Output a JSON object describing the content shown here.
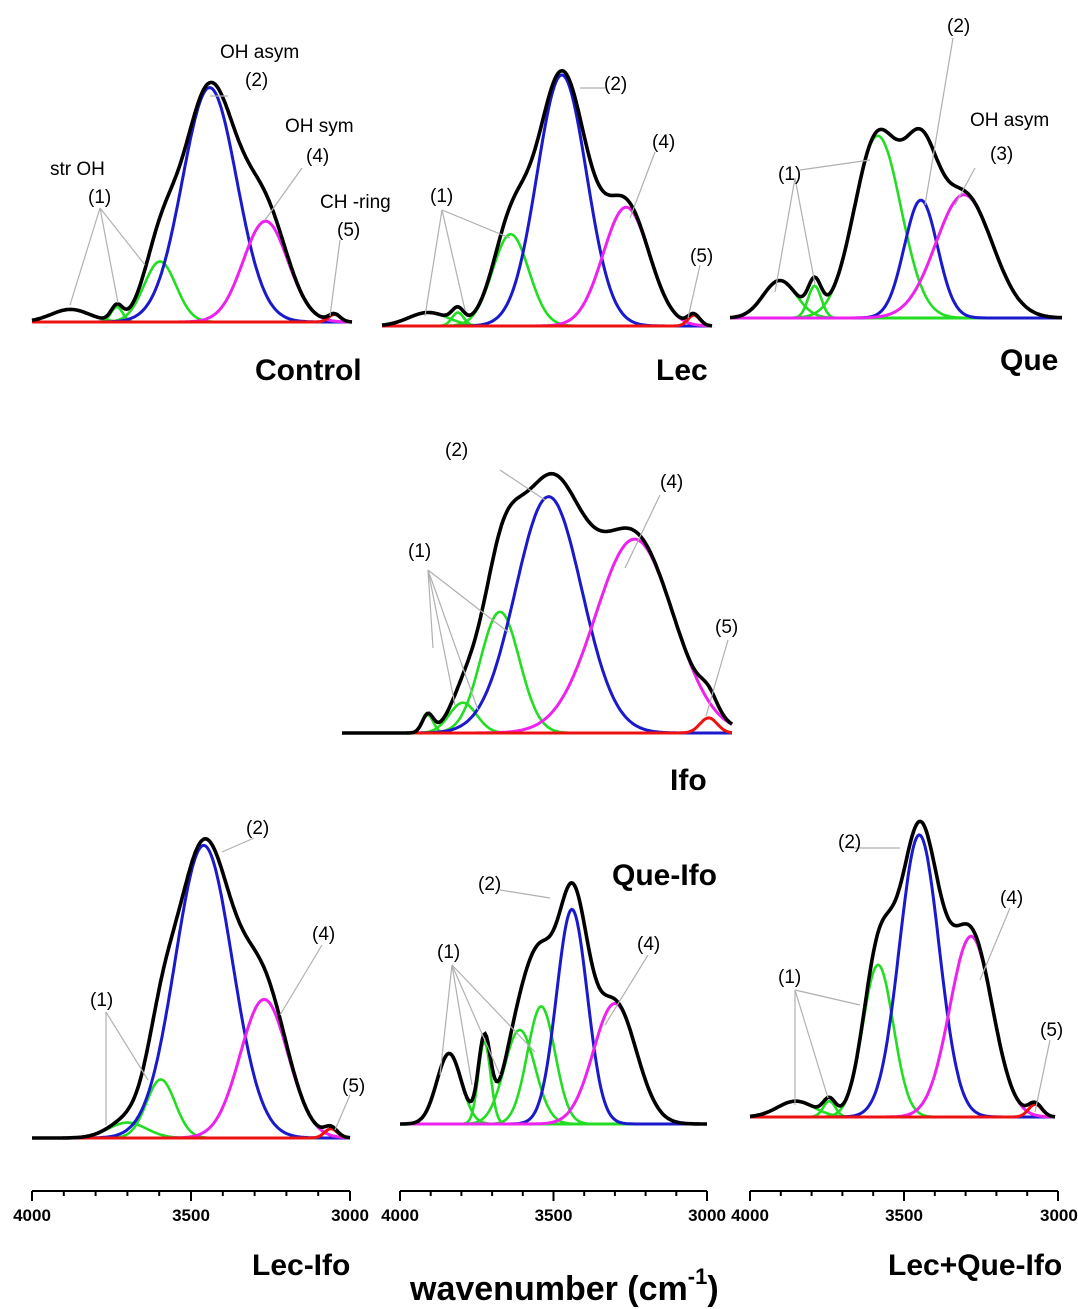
{
  "chart_data": {
    "type": "line",
    "xlabel_main": "wavenumber (cm",
    "xlabel_sup": "-1",
    "colors": {
      "total": "#000000",
      "c1": "#22dd22",
      "c2": "#1a1acc",
      "c3": "#1a1acc",
      "c4": "#ee22ee",
      "c5": "#ee1111"
    },
    "panels": [
      {
        "name": "Control",
        "xlim": [
          4000,
          3000
        ],
        "components": [
          {
            "id": "c1",
            "label": "(1)",
            "center": 3880,
            "height": 0.05,
            "width": 60
          },
          {
            "id": "c1",
            "label": "(1)",
            "center": 3735,
            "height": 0.06,
            "width": 18
          },
          {
            "id": "c1",
            "label": "(1)",
            "center": 3600,
            "height": 0.24,
            "width": 50
          },
          {
            "id": "c2",
            "label": "(2)",
            "center": 3445,
            "height": 0.93,
            "width": 85
          },
          {
            "id": "c4",
            "label": "(4)",
            "center": 3270,
            "height": 0.4,
            "width": 70
          },
          {
            "id": "c5",
            "label": "(5)",
            "center": 3055,
            "height": 0.03,
            "width": 18
          }
        ],
        "annotations": [
          {
            "text": "str OH"
          },
          {
            "text": "(1)"
          },
          {
            "text": "OH asym"
          },
          {
            "text": "(2)"
          },
          {
            "text": "OH sym"
          },
          {
            "text": "(4)"
          },
          {
            "text": "CH -ring"
          },
          {
            "text": "(5)"
          }
        ]
      },
      {
        "name": "Lec",
        "xlim": [
          4000,
          3000
        ],
        "components": [
          {
            "id": "c1",
            "label": "(1)",
            "center": 3860,
            "height": 0.05,
            "width": 60
          },
          {
            "id": "c1",
            "label": "(1)",
            "center": 3770,
            "height": 0.05,
            "width": 18
          },
          {
            "id": "c1",
            "label": "(1)",
            "center": 3610,
            "height": 0.34,
            "width": 55
          },
          {
            "id": "c2",
            "label": "(2)",
            "center": 3455,
            "height": 0.93,
            "width": 75
          },
          {
            "id": "c4",
            "label": "(4)",
            "center": 3260,
            "height": 0.44,
            "width": 70
          },
          {
            "id": "c5",
            "label": "(5)",
            "center": 3055,
            "height": 0.04,
            "width": 18
          }
        ],
        "annotations": [
          {
            "text": "(1)"
          },
          {
            "text": "(2)"
          },
          {
            "text": "(4)"
          },
          {
            "text": "(5)"
          }
        ]
      },
      {
        "name": "Que",
        "xlim": [
          4000,
          3000
        ],
        "components": [
          {
            "id": "c1",
            "label": "(1)",
            "center": 3850,
            "height": 0.14,
            "width": 50
          },
          {
            "id": "c1",
            "label": "(1)",
            "center": 3745,
            "height": 0.12,
            "width": 20
          },
          {
            "id": "c1",
            "label": "(1)",
            "center": 3555,
            "height": 0.68,
            "width": 70
          },
          {
            "id": "c3",
            "label": "(2)",
            "center": 3425,
            "height": 0.44,
            "width": 50
          },
          {
            "id": "c4",
            "label": "(3)",
            "center": 3295,
            "height": 0.46,
            "width": 85
          }
        ],
        "annotations": [
          {
            "text": "(2)"
          },
          {
            "text": "OH asym"
          },
          {
            "text": "(3)"
          },
          {
            "text": "(1)"
          }
        ]
      },
      {
        "name": "Ifo",
        "xlim": [
          4000,
          3000
        ],
        "components": [
          {
            "id": "c1",
            "label": "(1)",
            "center": 3780,
            "height": 0.06,
            "width": 14
          },
          {
            "id": "c1",
            "label": "(1)",
            "center": 3690,
            "height": 0.1,
            "width": 35
          },
          {
            "id": "c1",
            "label": "(1)",
            "center": 3595,
            "height": 0.4,
            "width": 50
          },
          {
            "id": "c2",
            "label": "(2)",
            "center": 3470,
            "height": 0.78,
            "width": 85
          },
          {
            "id": "c4",
            "label": "(4)",
            "center": 3250,
            "height": 0.64,
            "width": 100
          },
          {
            "id": "c5",
            "label": "(5)",
            "center": 3060,
            "height": 0.05,
            "width": 22
          }
        ],
        "annotations": [
          {
            "text": "(2)"
          },
          {
            "text": "(4)"
          },
          {
            "text": "(1)"
          },
          {
            "text": "(5)"
          }
        ]
      },
      {
        "name": "Lec-Ifo",
        "xlim": [
          4000,
          3000
        ],
        "xticks": [
          4000,
          3500,
          3000
        ],
        "components": [
          {
            "id": "c1",
            "label": "(1)",
            "center": 3700,
            "height": 0.05,
            "width": 60
          },
          {
            "id": "c1",
            "label": "(1)",
            "center": 3595,
            "height": 0.19,
            "width": 45
          },
          {
            "id": "c2",
            "label": "(2)",
            "center": 3460,
            "height": 0.95,
            "width": 90
          },
          {
            "id": "c4",
            "label": "(4)",
            "center": 3270,
            "height": 0.45,
            "width": 75
          },
          {
            "id": "c5",
            "label": "(5)",
            "center": 3060,
            "height": 0.03,
            "width": 20
          }
        ],
        "annotations": [
          {
            "text": "(2)"
          },
          {
            "text": "(4)"
          },
          {
            "text": "(1)"
          },
          {
            "text": "(5)"
          }
        ]
      },
      {
        "name": "Que-Ifo",
        "xlim": [
          4000,
          3000
        ],
        "xticks": [
          4000,
          3500,
          3000
        ],
        "components": [
          {
            "id": "c1",
            "label": "(1)",
            "center": 3840,
            "height": 0.24,
            "width": 40
          },
          {
            "id": "c1",
            "label": "(1)",
            "center": 3725,
            "height": 0.28,
            "width": 20
          },
          {
            "id": "c1",
            "label": "(1)",
            "center": 3610,
            "height": 0.32,
            "width": 50
          },
          {
            "id": "c1",
            "label": "(1)",
            "center": 3540,
            "height": 0.4,
            "width": 45
          },
          {
            "id": "c2",
            "label": "(2)",
            "center": 3440,
            "height": 0.73,
            "width": 50
          },
          {
            "id": "c4",
            "label": "(4)",
            "center": 3300,
            "height": 0.41,
            "width": 70
          }
        ],
        "annotations": [
          {
            "text": "(2)"
          },
          {
            "text": "(4)"
          },
          {
            "text": "(1)"
          }
        ]
      },
      {
        "name": "Lec+Que-Ifo",
        "xlim": [
          4000,
          3000
        ],
        "xticks": [
          4000,
          3500,
          3000
        ],
        "components": [
          {
            "id": "c1",
            "label": "(1)",
            "center": 3850,
            "height": 0.05,
            "width": 60
          },
          {
            "id": "c1",
            "label": "(1)",
            "center": 3740,
            "height": 0.05,
            "width": 20
          },
          {
            "id": "c1",
            "label": "(1)",
            "center": 3580,
            "height": 0.48,
            "width": 50
          },
          {
            "id": "c2",
            "label": "(2)",
            "center": 3445,
            "height": 0.89,
            "width": 65
          },
          {
            "id": "c4",
            "label": "(4)",
            "center": 3275,
            "height": 0.57,
            "width": 70
          },
          {
            "id": "c5",
            "label": "(5)",
            "center": 3065,
            "height": 0.04,
            "width": 22
          }
        ],
        "annotations": [
          {
            "text": "(2)"
          },
          {
            "text": "(4)"
          },
          {
            "text": "(1)"
          },
          {
            "text": "(5)"
          }
        ]
      }
    ]
  }
}
